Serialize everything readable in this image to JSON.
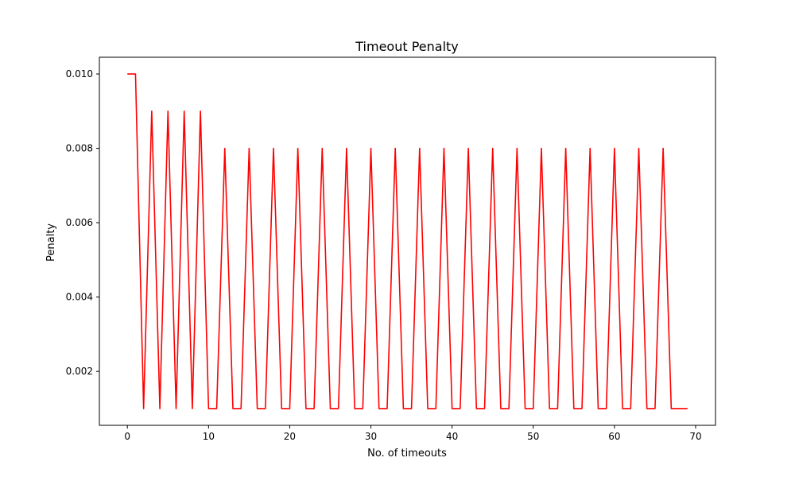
{
  "chart_data": {
    "type": "line",
    "title": "Timeout Penalty",
    "xlabel": "No. of timeouts",
    "ylabel": "Penalty",
    "xlim": [
      -3.45,
      72.45
    ],
    "ylim": [
      0.00055,
      0.01045
    ],
    "xticks": [
      0,
      10,
      20,
      30,
      40,
      50,
      60,
      70
    ],
    "xtick_labels": [
      "0",
      "10",
      "20",
      "30",
      "40",
      "50",
      "60",
      "70"
    ],
    "yticks": [
      0.002,
      0.004,
      0.006,
      0.008,
      0.01
    ],
    "ytick_labels": [
      "0.002",
      "0.004",
      "0.006",
      "0.008",
      "0.010"
    ],
    "grid": false,
    "legend": "none",
    "series": [
      {
        "color": "#ff0000",
        "x": [
          0,
          1,
          2,
          3,
          4,
          5,
          6,
          7,
          8,
          9,
          10,
          11,
          12,
          13,
          14,
          15,
          16,
          17,
          18,
          19,
          20,
          21,
          22,
          23,
          24,
          25,
          26,
          27,
          28,
          29,
          30,
          31,
          32,
          33,
          34,
          35,
          36,
          37,
          38,
          39,
          40,
          41,
          42,
          43,
          44,
          45,
          46,
          47,
          48,
          49,
          50,
          51,
          52,
          53,
          54,
          55,
          56,
          57,
          58,
          59,
          60,
          61,
          62,
          63,
          64,
          65,
          66,
          67,
          68,
          69
        ],
        "y": [
          0.01,
          0.01,
          0.001,
          0.009,
          0.001,
          0.009,
          0.001,
          0.009,
          0.001,
          0.009,
          0.001,
          0.001,
          0.008,
          0.001,
          0.001,
          0.008,
          0.001,
          0.001,
          0.008,
          0.001,
          0.001,
          0.008,
          0.001,
          0.001,
          0.008,
          0.001,
          0.001,
          0.008,
          0.001,
          0.001,
          0.008,
          0.001,
          0.001,
          0.008,
          0.001,
          0.001,
          0.008,
          0.001,
          0.001,
          0.008,
          0.001,
          0.001,
          0.008,
          0.001,
          0.001,
          0.008,
          0.001,
          0.001,
          0.008,
          0.001,
          0.001,
          0.008,
          0.001,
          0.001,
          0.008,
          0.001,
          0.001,
          0.008,
          0.001,
          0.001,
          0.008,
          0.001,
          0.001,
          0.008,
          0.001,
          0.001,
          0.008,
          0.001,
          0.001,
          0.001
        ]
      }
    ]
  }
}
